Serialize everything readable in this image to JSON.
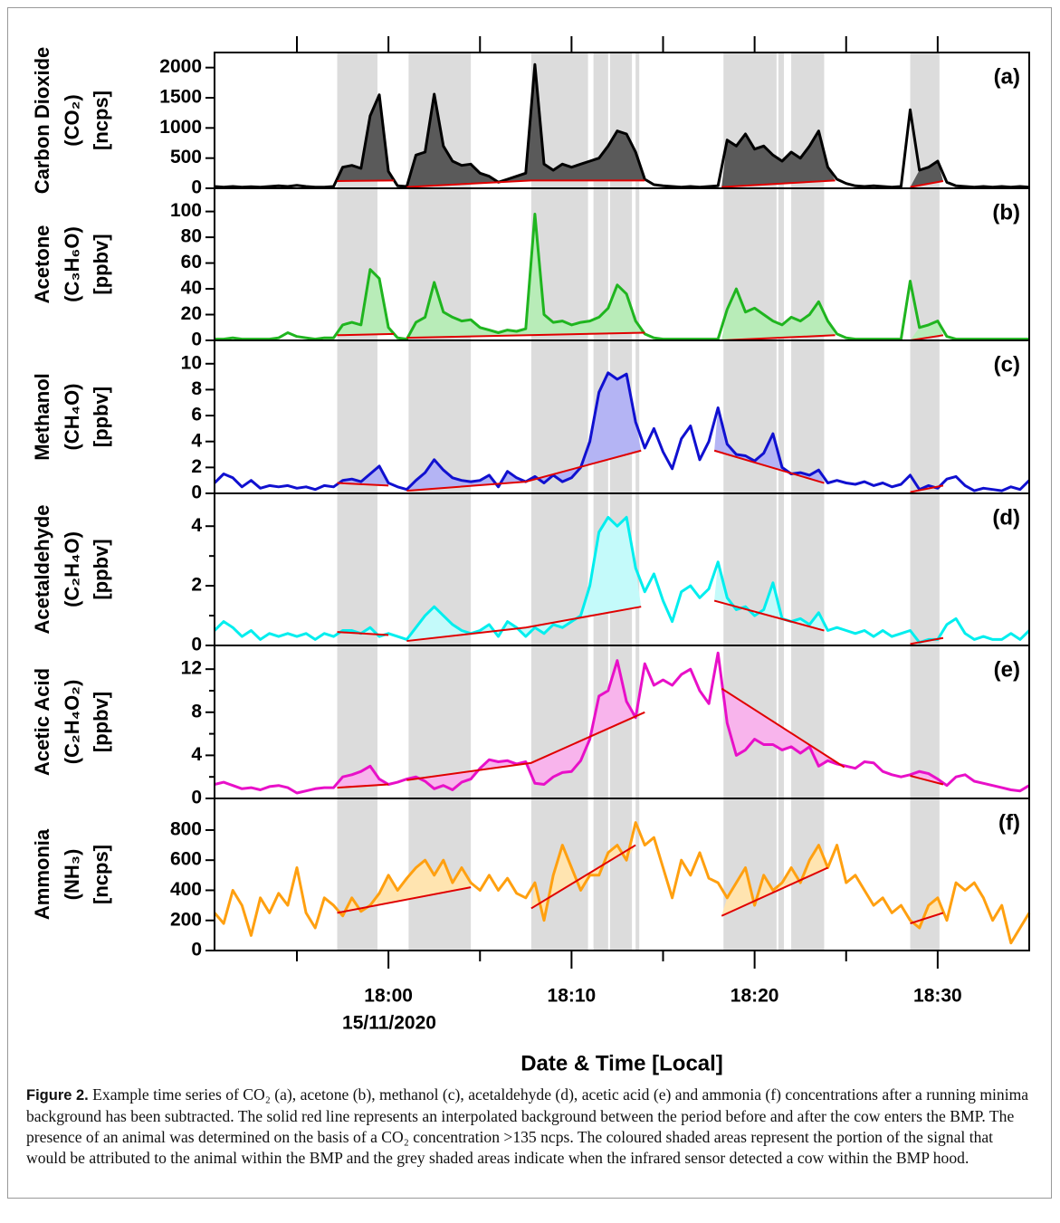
{
  "time_axis": {
    "x": [
      1070.5,
      1071,
      1071.5,
      1072,
      1072.5,
      1073,
      1073.5,
      1074,
      1074.5,
      1075,
      1075.5,
      1076,
      1076.5,
      1077,
      1077.5,
      1078,
      1078.5,
      1079,
      1079.5,
      1080,
      1080.5,
      1081,
      1081.5,
      1082,
      1082.5,
      1083,
      1083.5,
      1084,
      1084.5,
      1085,
      1085.5,
      1086,
      1086.5,
      1087,
      1087.5,
      1088,
      1088.5,
      1089,
      1089.5,
      1090,
      1090.5,
      1091,
      1091.5,
      1092,
      1092.5,
      1093,
      1093.5,
      1094,
      1094.5,
      1095,
      1095.5,
      1096,
      1096.5,
      1097,
      1097.5,
      1098,
      1098.5,
      1099,
      1099.5,
      1100,
      1100.5,
      1101,
      1101.5,
      1102,
      1102.5,
      1103,
      1103.5,
      1104,
      1104.5,
      1105,
      1105.5,
      1106,
      1106.5,
      1107,
      1107.5,
      1108,
      1108.5,
      1109,
      1109.5,
      1110,
      1110.5,
      1111,
      1111.5,
      1112,
      1112.5,
      1113,
      1113.5,
      1114,
      1114.5,
      1115
    ],
    "xlim": [
      1070.5,
      1115
    ],
    "xticks": [
      {
        "value": 1080,
        "label": "18:00"
      },
      {
        "value": 1090,
        "label": "18:10"
      },
      {
        "value": 1100,
        "label": "18:20"
      },
      {
        "value": 1110,
        "label": "18:30"
      }
    ],
    "minor_xticks": [
      1075,
      1085,
      1095,
      1105
    ],
    "date_label": "15/11/2020",
    "xlabel": "Date & Time [Local]",
    "shaded": [
      [
        1077.2,
        1079.4
      ],
      [
        1081.1,
        1084.5
      ],
      [
        1087.8,
        1090.9
      ],
      [
        1091.2,
        1092.0
      ],
      [
        1092.1,
        1093.3
      ],
      [
        1093.5,
        1093.7
      ],
      [
        1098.3,
        1101.2
      ],
      [
        1101.3,
        1101.6
      ],
      [
        1102.0,
        1103.8
      ],
      [
        1108.5,
        1110.1
      ]
    ],
    "shade_color": "#dcdcdc",
    "background_color": "#e00000"
  },
  "chart_data": [
    {
      "type": "line",
      "tag": "(a)",
      "ylabel": [
        "Carbon Dioxide",
        "(CO₂)",
        "[ncps]"
      ],
      "color": "#000000",
      "fill_color": "#5a5a5a",
      "ylim": [
        0,
        2250
      ],
      "yticks": [
        0,
        500,
        1000,
        1500,
        2000
      ],
      "minor_yticks": [],
      "values": [
        30,
        20,
        30,
        20,
        25,
        20,
        30,
        40,
        30,
        50,
        30,
        20,
        20,
        30,
        350,
        380,
        330,
        1200,
        1550,
        280,
        40,
        30,
        550,
        600,
        1560,
        700,
        450,
        380,
        400,
        250,
        200,
        100,
        150,
        200,
        250,
        2050,
        400,
        300,
        400,
        350,
        400,
        450,
        500,
        700,
        950,
        900,
        600,
        150,
        60,
        40,
        30,
        20,
        30,
        20,
        30,
        40,
        800,
        700,
        900,
        650,
        700,
        550,
        450,
        600,
        500,
        700,
        950,
        350,
        150,
        80,
        40,
        30,
        40,
        30,
        20,
        30,
        1300,
        300,
        350,
        450,
        100,
        40,
        30,
        20,
        30,
        20,
        30,
        20,
        30,
        20
      ],
      "background": [
        {
          "x": [
            1077.2,
            1080.3
          ],
          "y": [
            120,
            130
          ]
        },
        {
          "x": [
            1081.0,
            1087.8,
            1094.0
          ],
          "y": [
            20,
            130,
            130
          ]
        },
        {
          "x": [
            1098.2,
            1104.4
          ],
          "y": [
            20,
            130
          ]
        },
        {
          "x": [
            1108.5,
            1110.3
          ],
          "y": [
            20,
            120
          ]
        }
      ]
    },
    {
      "type": "line",
      "tag": "(b)",
      "ylabel": [
        "Acetone",
        "(C₃H₆O)",
        "[ppbv]"
      ],
      "color": "#1fb51f",
      "fill_color": "#b8ecb8",
      "ylim": [
        0,
        118
      ],
      "yticks": [
        0,
        20,
        40,
        60,
        80,
        100
      ],
      "minor_yticks": [],
      "values": [
        1,
        1,
        2,
        1,
        1,
        1,
        1,
        2,
        6,
        3,
        2,
        1,
        2,
        2,
        12,
        14,
        12,
        55,
        48,
        10,
        2,
        1,
        14,
        18,
        45,
        22,
        18,
        15,
        16,
        10,
        8,
        6,
        8,
        7,
        9,
        98,
        20,
        14,
        15,
        12,
        14,
        15,
        18,
        25,
        43,
        36,
        15,
        5,
        2,
        1,
        1,
        1,
        1,
        1,
        1,
        1,
        24,
        40,
        22,
        25,
        20,
        15,
        12,
        18,
        15,
        20,
        30,
        15,
        5,
        2,
        1,
        1,
        1,
        1,
        1,
        1,
        46,
        10,
        12,
        15,
        3,
        1,
        1,
        1,
        1,
        1,
        1,
        1,
        1,
        1
      ],
      "background": [
        {
          "x": [
            1077.2,
            1080.3
          ],
          "y": [
            4,
            5
          ]
        },
        {
          "x": [
            1081.0,
            1094.0
          ],
          "y": [
            2,
            6
          ]
        },
        {
          "x": [
            1098.2,
            1104.4
          ],
          "y": [
            0,
            4
          ]
        },
        {
          "x": [
            1108.5,
            1110.3
          ],
          "y": [
            0,
            4
          ]
        }
      ]
    },
    {
      "type": "line",
      "tag": "(c)",
      "ylabel": [
        "Methanol",
        "(CH₄O)",
        "[ppbv]"
      ],
      "color": "#1010d0",
      "fill_color": "#b4b4f4",
      "ylim": [
        0,
        11.8
      ],
      "yticks": [
        0,
        2,
        4,
        6,
        8,
        10
      ],
      "minor_yticks": [],
      "values": [
        0.8,
        1.5,
        1.2,
        0.5,
        1.0,
        0.4,
        0.6,
        0.5,
        0.6,
        0.4,
        0.5,
        0.3,
        0.6,
        0.5,
        1.0,
        1.1,
        0.9,
        1.5,
        2.1,
        0.8,
        0.5,
        0.3,
        1.0,
        1.6,
        2.6,
        1.8,
        1.2,
        1.0,
        0.9,
        1.0,
        1.4,
        0.5,
        1.7,
        1.2,
        0.9,
        1.3,
        0.8,
        1.4,
        0.9,
        1.2,
        2.0,
        4.0,
        7.8,
        9.3,
        8.8,
        9.2,
        5.5,
        3.5,
        5.0,
        3.2,
        1.9,
        4.2,
        5.2,
        2.6,
        4.0,
        6.6,
        3.8,
        3.0,
        2.9,
        2.5,
        3.1,
        4.6,
        2.0,
        1.5,
        1.6,
        1.4,
        1.8,
        0.8,
        1.0,
        0.8,
        0.7,
        0.9,
        0.6,
        0.8,
        0.5,
        0.7,
        1.4,
        0.3,
        0.6,
        0.4,
        1.1,
        1.3,
        0.6,
        0.2,
        0.4,
        0.3,
        0.2,
        0.5,
        0.3,
        1.0
      ],
      "background": [
        {
          "x": [
            1077.2,
            1080.0
          ],
          "y": [
            0.8,
            0.6
          ]
        },
        {
          "x": [
            1081.0,
            1087.5,
            1093.8
          ],
          "y": [
            0.2,
            0.9,
            3.3
          ]
        },
        {
          "x": [
            1097.8,
            1103.8
          ],
          "y": [
            3.3,
            0.8
          ]
        },
        {
          "x": [
            1108.5,
            1110.3
          ],
          "y": [
            0.1,
            0.6
          ]
        }
      ]
    },
    {
      "type": "line",
      "tag": "(d)",
      "ylabel": [
        "Acetaldehyde",
        "(C₂H₄O)",
        "[ppbv]"
      ],
      "color": "#00eeee",
      "fill_color": "#c4fafa",
      "ylim": [
        0,
        5.1
      ],
      "yticks": [
        0,
        2,
        4
      ],
      "minor_yticks": [
        1,
        3
      ],
      "values": [
        0.5,
        0.8,
        0.6,
        0.3,
        0.5,
        0.2,
        0.4,
        0.3,
        0.4,
        0.3,
        0.4,
        0.2,
        0.4,
        0.3,
        0.5,
        0.5,
        0.4,
        0.6,
        0.3,
        0.4,
        0.3,
        0.2,
        0.6,
        1.0,
        1.3,
        1.0,
        0.7,
        0.5,
        0.4,
        0.5,
        0.7,
        0.3,
        0.8,
        0.6,
        0.3,
        0.6,
        0.4,
        0.7,
        0.6,
        0.8,
        1.0,
        2.0,
        3.8,
        4.3,
        4.0,
        4.3,
        2.6,
        1.8,
        2.4,
        1.5,
        0.8,
        1.8,
        2.0,
        1.6,
        1.9,
        2.8,
        1.6,
        1.2,
        1.3,
        1.0,
        1.2,
        2.1,
        0.9,
        0.8,
        0.9,
        0.7,
        1.1,
        0.5,
        0.6,
        0.5,
        0.4,
        0.5,
        0.3,
        0.5,
        0.3,
        0.4,
        0.5,
        0.1,
        0.2,
        0.2,
        0.7,
        0.9,
        0.4,
        0.2,
        0.3,
        0.2,
        0.2,
        0.4,
        0.2,
        0.5
      ],
      "background": [
        {
          "x": [
            1077.2,
            1080.0
          ],
          "y": [
            0.45,
            0.35
          ]
        },
        {
          "x": [
            1081.0,
            1087.5,
            1093.8
          ],
          "y": [
            0.15,
            0.6,
            1.3
          ]
        },
        {
          "x": [
            1097.8,
            1103.8
          ],
          "y": [
            1.5,
            0.5
          ]
        },
        {
          "x": [
            1108.5,
            1110.3
          ],
          "y": [
            0.05,
            0.25
          ]
        }
      ]
    },
    {
      "type": "line",
      "tag": "(e)",
      "ylabel": [
        "Acetic Acid",
        "(C₂H₄O₂)",
        "[ppbv]"
      ],
      "color": "#e810c8",
      "fill_color": "#f8b4ec",
      "ylim": [
        0,
        14.2
      ],
      "yticks": [
        0,
        4,
        8,
        12
      ],
      "minor_yticks": [
        2,
        6,
        10
      ],
      "values": [
        1.3,
        1.5,
        1.2,
        0.9,
        1.0,
        0.8,
        1.1,
        1.2,
        1.0,
        0.5,
        0.7,
        0.9,
        1.0,
        1.0,
        2.0,
        2.2,
        2.5,
        3.0,
        1.8,
        1.3,
        1.5,
        1.8,
        2.0,
        1.6,
        0.9,
        1.2,
        0.8,
        1.5,
        1.8,
        2.8,
        3.6,
        3.4,
        3.5,
        3.2,
        3.4,
        1.4,
        1.3,
        2.0,
        2.4,
        2.5,
        3.5,
        5.5,
        9.5,
        10.0,
        12.8,
        9.0,
        7.5,
        12.5,
        10.5,
        11.0,
        10.5,
        11.5,
        12.0,
        10.0,
        8.8,
        13.5,
        7.0,
        4.0,
        4.5,
        5.5,
        5.0,
        5.0,
        4.5,
        4.8,
        4.2,
        4.8,
        3.0,
        3.5,
        3.2,
        3.0,
        2.8,
        3.4,
        3.3,
        2.5,
        2.2,
        2.0,
        2.2,
        2.5,
        2.3,
        1.8,
        1.2,
        2.0,
        2.2,
        1.6,
        1.4,
        1.2,
        1.0,
        0.8,
        0.7,
        1.2
      ],
      "background": [
        {
          "x": [
            1077.2,
            1080.0
          ],
          "y": [
            1.0,
            1.3
          ]
        },
        {
          "x": [
            1081.0,
            1087.8,
            1094.0
          ],
          "y": [
            1.7,
            3.3,
            8.0
          ]
        },
        {
          "x": [
            1098.2,
            1104.9
          ],
          "y": [
            10.2,
            2.9
          ]
        },
        {
          "x": [
            1108.5,
            1110.3
          ],
          "y": [
            2.1,
            1.3
          ]
        }
      ]
    },
    {
      "type": "line",
      "tag": "(f)",
      "ylabel": [
        "Ammonia",
        "(NH₃)",
        "[ncps]"
      ],
      "color": "#ffa010",
      "fill_color": "#ffe4b0",
      "ylim": [
        0,
        1010
      ],
      "yticks": [
        0,
        200,
        400,
        600,
        800
      ],
      "minor_yticks": [],
      "values": [
        250,
        180,
        400,
        300,
        100,
        350,
        250,
        380,
        300,
        550,
        250,
        150,
        350,
        300,
        230,
        350,
        260,
        300,
        380,
        500,
        400,
        480,
        550,
        600,
        500,
        600,
        450,
        550,
        450,
        400,
        500,
        400,
        480,
        380,
        350,
        450,
        200,
        500,
        700,
        550,
        400,
        500,
        500,
        650,
        700,
        600,
        850,
        700,
        750,
        550,
        350,
        600,
        500,
        650,
        480,
        450,
        350,
        450,
        550,
        300,
        500,
        400,
        450,
        550,
        450,
        600,
        700,
        550,
        700,
        450,
        500,
        400,
        300,
        350,
        250,
        300,
        200,
        150,
        300,
        350,
        200,
        450,
        400,
        450,
        350,
        200,
        300,
        50,
        150,
        250
      ],
      "background": [
        {
          "x": [
            1077.2,
            1084.5
          ],
          "y": [
            250,
            420
          ]
        },
        {
          "x": [
            1087.8,
            1093.5
          ],
          "y": [
            280,
            700
          ]
        },
        {
          "x": [
            1098.2,
            1104.0
          ],
          "y": [
            230,
            550
          ]
        },
        {
          "x": [
            1108.5,
            1110.3
          ],
          "y": [
            180,
            250
          ]
        }
      ]
    }
  ],
  "caption": {
    "label": "Figure 2.",
    "text": "Example time series of CO₂ (a), acetone (b), methanol (c), acetaldehyde (d), acetic acid (e) and ammonia (f) concentrations after a running minima background has been subtracted. The solid red line represents an interpolated background between the period before and after the cow enters the BMP. The presence of an animal was determined on the basis of a CO₂ concentration >135 ncps. The coloured shaded areas represent the portion of the signal that would be attributed to the animal within the BMP and the grey shaded areas indicate when the infrared sensor detected a cow within the BMP hood."
  }
}
